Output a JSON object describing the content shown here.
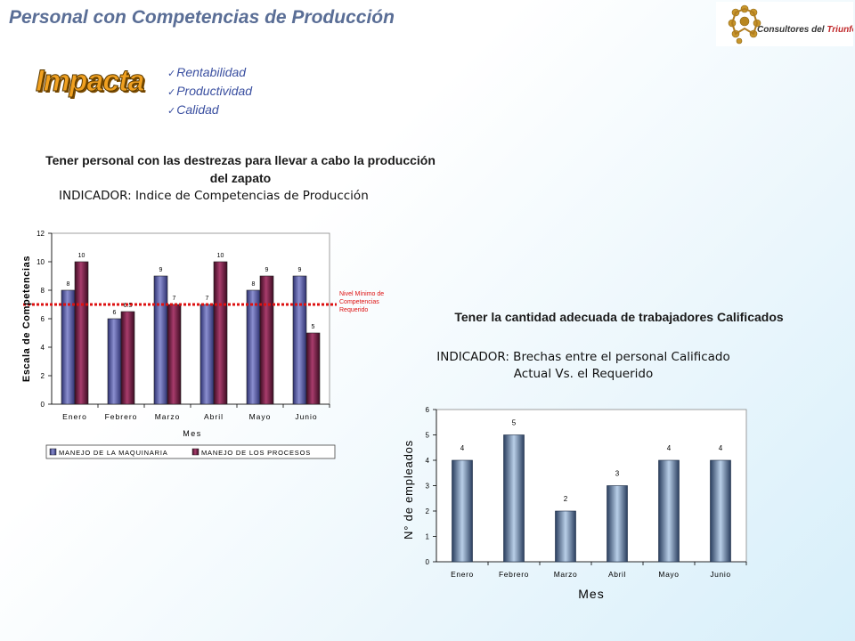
{
  "header": {
    "title": "Personal con Competencias de Producción",
    "logo_text": "Consultores del Triunfo, C.A."
  },
  "impact": {
    "heading": "Impacta",
    "items": [
      "Rentabilidad",
      "Productividad",
      "Calidad"
    ]
  },
  "left_section": {
    "subtitle": "Tener personal con las destrezas para llevar a cabo la producción del zapato",
    "indicator": "INDICADOR: Indice de Competencias de Producción"
  },
  "right_section": {
    "subtitle": "Tener la cantidad adecuada de trabajadores Calificados",
    "indicator_line1": "INDICADOR: Brechas entre el personal Calificado",
    "indicator_line2": "Actual Vs. el Requerido"
  },
  "colors": {
    "series1": "#5b5ea6",
    "series2": "#7a1f4a",
    "reference": "#dd1111",
    "bars_right": "#6d84a8"
  },
  "chart_data": [
    {
      "type": "bar",
      "categories": [
        "Enero",
        "Febrero",
        "Marzo",
        "Abril",
        "Mayo",
        "Junio"
      ],
      "series": [
        {
          "name": "MANEJO DE LA MAQUINARIA",
          "values": [
            8,
            6,
            9,
            7,
            8,
            9
          ],
          "labels": [
            "8",
            "6",
            "9",
            "7",
            "8",
            "9"
          ]
        },
        {
          "name": "MANEJO DE LOS PROCESOS",
          "values": [
            10,
            6.5,
            7,
            10,
            9,
            5
          ],
          "labels": [
            "10",
            "6.5",
            "7",
            "10",
            "9",
            "5"
          ]
        }
      ],
      "xlabel": "Mes",
      "ylabel": "Escala de Competencias",
      "ylim": [
        0,
        12
      ],
      "yticks": [
        "0",
        "2",
        "4",
        "6",
        "8",
        "10",
        "12"
      ],
      "reference_line": {
        "value": 7,
        "label": "Nivel Mínimo de Competencias Requerido"
      },
      "legend_position": "bottom"
    },
    {
      "type": "bar",
      "categories": [
        "Enero",
        "Febrero",
        "Marzo",
        "Abril",
        "Mayo",
        "Junio"
      ],
      "values": [
        4,
        5,
        2,
        3,
        4,
        4
      ],
      "labels": [
        "4",
        "5",
        "2",
        "3",
        "4",
        "4"
      ],
      "xlabel": "Mes",
      "ylabel": "N° de empleados",
      "ylim": [
        0,
        6
      ],
      "yticks": [
        "0",
        "1",
        "2",
        "3",
        "4",
        "5",
        "6"
      ]
    }
  ]
}
